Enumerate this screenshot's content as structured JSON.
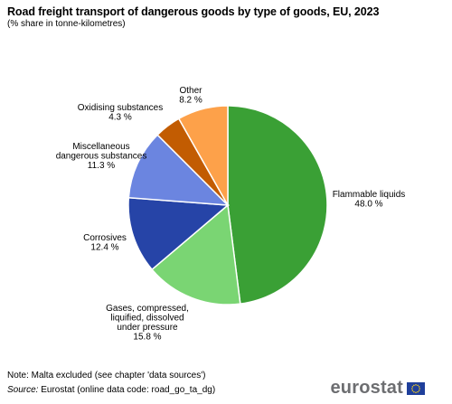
{
  "title": "Road freight transport of dangerous goods by type of goods, EU, 2023",
  "subtitle": "(% share in tonne-kilometres)",
  "note": "Note: Malta excluded (see chapter 'data sources')",
  "source_prefix": "Source:",
  "source_text": "Eurostat (online data code: road_go_ta_dg)",
  "logo_text": "eurostat",
  "chart_data": {
    "type": "pie",
    "title": "Road freight transport of dangerous goods by type of goods, EU, 2023",
    "subtitle": "(% share in tonne-kilometres)",
    "unit": "%",
    "slices": [
      {
        "label_lines": [
          "Flammable liquids"
        ],
        "value": 48.0,
        "value_text": "48.0 %",
        "color": "#3aa035"
      },
      {
        "label_lines": [
          "Gases, compressed,",
          "liquified, dissolved",
          "under pressure"
        ],
        "value": 15.8,
        "value_text": "15.8 %",
        "color": "#7ad573"
      },
      {
        "label_lines": [
          "Corrosives"
        ],
        "value": 12.4,
        "value_text": "12.4 %",
        "color": "#2644a7"
      },
      {
        "label_lines": [
          "Miscellaneous",
          "dangerous substances"
        ],
        "value": 11.3,
        "value_text": "11.3 %",
        "color": "#6b85e0"
      },
      {
        "label_lines": [
          "Oxidising substances"
        ],
        "value": 4.3,
        "value_text": "4.3 %",
        "color": "#c25c02"
      },
      {
        "label_lines": [
          "Other"
        ],
        "value": 8.2,
        "value_text": "8.2 %",
        "color": "#fda14a"
      }
    ]
  }
}
